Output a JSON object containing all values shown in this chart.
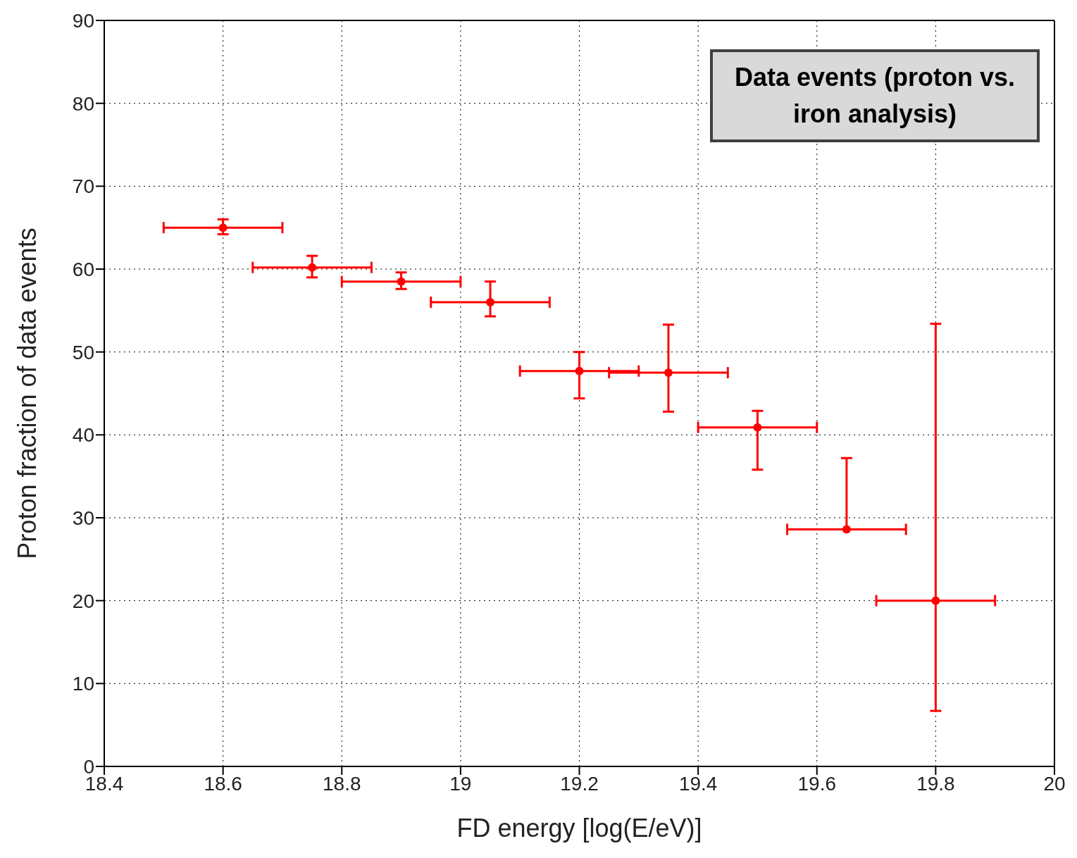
{
  "chart_data": {
    "type": "scatter",
    "xlabel": "FD energy [log(E/eV)]",
    "ylabel": "Proton fraction of data events",
    "annotations": [
      "Data events (proton vs. iron analysis)"
    ],
    "x": [
      18.6,
      18.75,
      18.9,
      19.05,
      19.2,
      19.35,
      19.5,
      19.65,
      19.8
    ],
    "values": [
      65.0,
      60.2,
      58.5,
      56.0,
      47.7,
      47.5,
      40.9,
      28.6,
      20.0
    ],
    "errors": [
      [
        64.2,
        66.0
      ],
      [
        59.0,
        61.6
      ],
      [
        57.6,
        59.6
      ],
      [
        54.3,
        58.5
      ],
      [
        44.4,
        50.0
      ],
      [
        42.8,
        53.3
      ],
      [
        35.8,
        42.9
      ],
      [
        28.6,
        37.2
      ],
      [
        6.7,
        53.4
      ]
    ],
    "xerrors": [
      [
        18.5,
        18.7
      ],
      [
        18.65,
        18.85
      ],
      [
        18.8,
        19.0
      ],
      [
        18.95,
        19.15
      ],
      [
        19.1,
        19.3
      ],
      [
        19.25,
        19.45
      ],
      [
        19.4,
        19.6
      ],
      [
        19.55,
        19.75
      ],
      [
        19.7,
        19.9
      ]
    ],
    "color": "#ff0000",
    "marker": "circle",
    "grid": true,
    "xlim": [
      18.4,
      20
    ],
    "xticks": [
      18.4,
      18.6,
      18.8,
      19,
      19.2,
      19.4,
      19.6,
      19.8,
      20
    ],
    "ylim": [
      0,
      90
    ],
    "yticks": [
      0,
      10,
      20,
      30,
      40,
      50,
      60,
      70,
      80,
      90
    ]
  }
}
